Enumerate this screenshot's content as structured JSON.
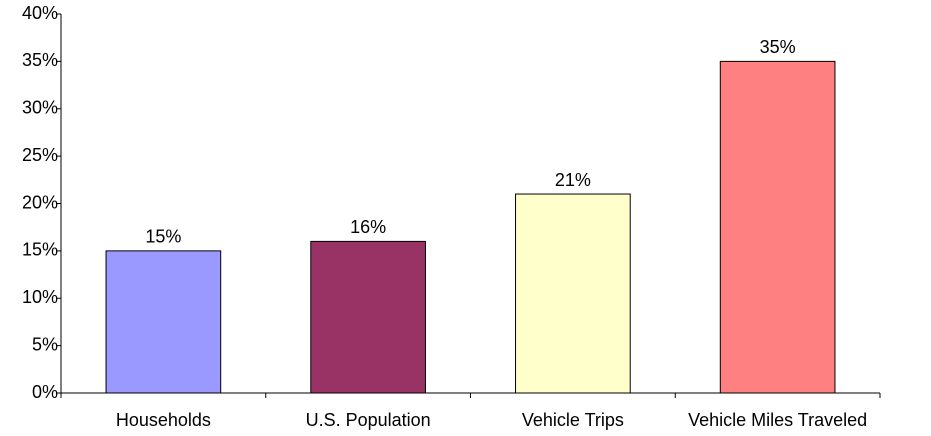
{
  "chart_data": {
    "type": "bar",
    "categories": [
      "Households",
      "U.S. Population",
      "Vehicle Trips",
      "Vehicle Miles Traveled"
    ],
    "values": [
      15,
      16,
      21,
      35
    ],
    "value_labels": [
      "15%",
      "16%",
      "21%",
      "35%"
    ],
    "colors": [
      "#9999ff",
      "#993366",
      "#ffffcc",
      "#ff8080"
    ],
    "ylim": [
      0,
      40
    ],
    "yticks": [
      {
        "value": 0,
        "label": "0%"
      },
      {
        "value": 5,
        "label": "5%"
      },
      {
        "value": 10,
        "label": "10%"
      },
      {
        "value": 15,
        "label": "15%"
      },
      {
        "value": 20,
        "label": "20%"
      },
      {
        "value": 25,
        "label": "25%"
      },
      {
        "value": 30,
        "label": "30%"
      },
      {
        "value": 35,
        "label": "35%"
      },
      {
        "value": 40,
        "label": "40%"
      }
    ],
    "grid": false
  }
}
